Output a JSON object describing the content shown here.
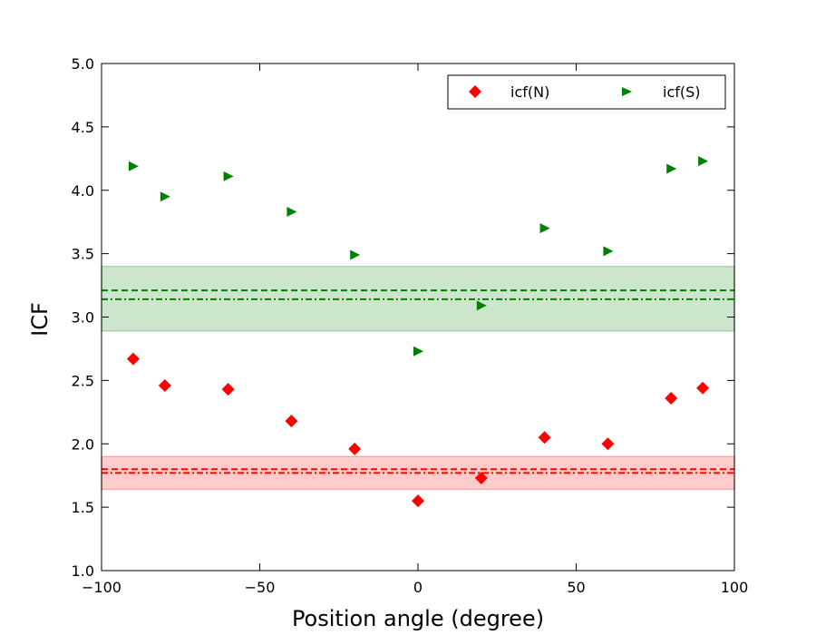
{
  "chart_data": {
    "type": "scatter",
    "xlabel": "Position angle (degree)",
    "ylabel": "ICF",
    "xlim": [
      -100,
      100
    ],
    "ylim": [
      1.0,
      5.0
    ],
    "x_ticks": [
      -100,
      -50,
      0,
      50,
      100
    ],
    "x_tick_labels": [
      "−100",
      "−50",
      "0",
      "50",
      "100"
    ],
    "y_ticks": [
      1.0,
      1.5,
      2.0,
      2.5,
      3.0,
      3.5,
      4.0,
      4.5,
      5.0
    ],
    "y_tick_labels": [
      "1.0",
      "1.5",
      "2.0",
      "2.5",
      "3.0",
      "3.5",
      "4.0",
      "4.5",
      "5.0"
    ],
    "grid": false,
    "legend_position": "top-right",
    "series": [
      {
        "name": "icf(N)",
        "marker": "diamond",
        "color": "#ff0000",
        "x": [
          -90,
          -80,
          -60,
          -40,
          -20,
          0,
          20,
          40,
          60,
          80,
          90
        ],
        "y": [
          2.67,
          2.46,
          2.43,
          2.18,
          1.96,
          1.55,
          1.73,
          2.05,
          2.0,
          2.36,
          2.44
        ]
      },
      {
        "name": "icf(S)",
        "marker": "triangle-right",
        "color": "#008000",
        "x": [
          -90,
          -80,
          -60,
          -40,
          -20,
          0,
          20,
          40,
          60,
          80,
          90
        ],
        "y": [
          4.19,
          3.95,
          4.11,
          3.83,
          3.49,
          2.73,
          3.09,
          3.7,
          3.52,
          4.17,
          4.23
        ]
      }
    ],
    "bands": [
      {
        "series": "icf(S)",
        "color": "#008000",
        "y_low": 2.89,
        "y_high": 3.4,
        "dashed": 3.21,
        "dashdot": 3.14
      },
      {
        "series": "icf(N)",
        "color": "#ff0000",
        "y_low": 1.64,
        "y_high": 1.9,
        "dashed": 1.8,
        "dashdot": 1.77
      }
    ]
  }
}
